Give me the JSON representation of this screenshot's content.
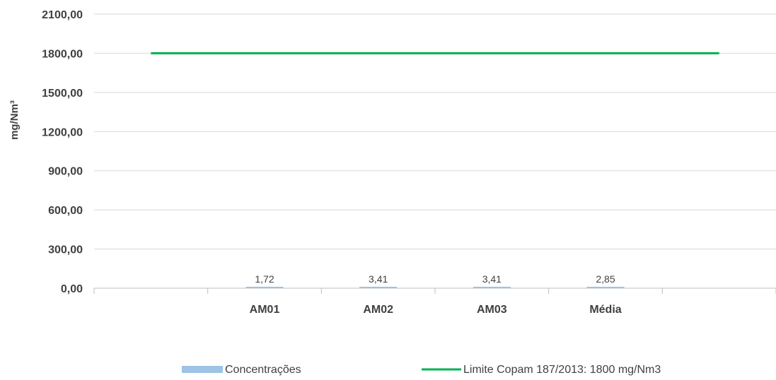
{
  "chart_data": {
    "type": "bar",
    "categories": [
      "",
      "AM01",
      "AM02",
      "AM03",
      "Média",
      ""
    ],
    "series": [
      {
        "name": "Concentrações",
        "type": "bar",
        "values": [
          null,
          1.72,
          3.41,
          3.41,
          2.85,
          null
        ],
        "labels": [
          "",
          "1,72",
          "3,41",
          "3,41",
          "2,85",
          ""
        ],
        "color": "#9dc3e6"
      },
      {
        "name": "Limite Copam 187/2013: 1800 mg/Nm3",
        "type": "line",
        "values": [
          1800,
          1800,
          1800,
          1800,
          1800,
          1800
        ],
        "color": "#00b050"
      }
    ],
    "ylabel": "mg/Nm³",
    "ylim": [
      0,
      2100
    ],
    "yticks": [
      0,
      300,
      600,
      900,
      1200,
      1500,
      1800,
      2100
    ],
    "ytick_labels": [
      "0,00",
      "300,00",
      "600,00",
      "900,00",
      "1200,00",
      "1500,00",
      "1800,00",
      "2100,00"
    ],
    "grid": true,
    "legend_position": "bottom"
  }
}
